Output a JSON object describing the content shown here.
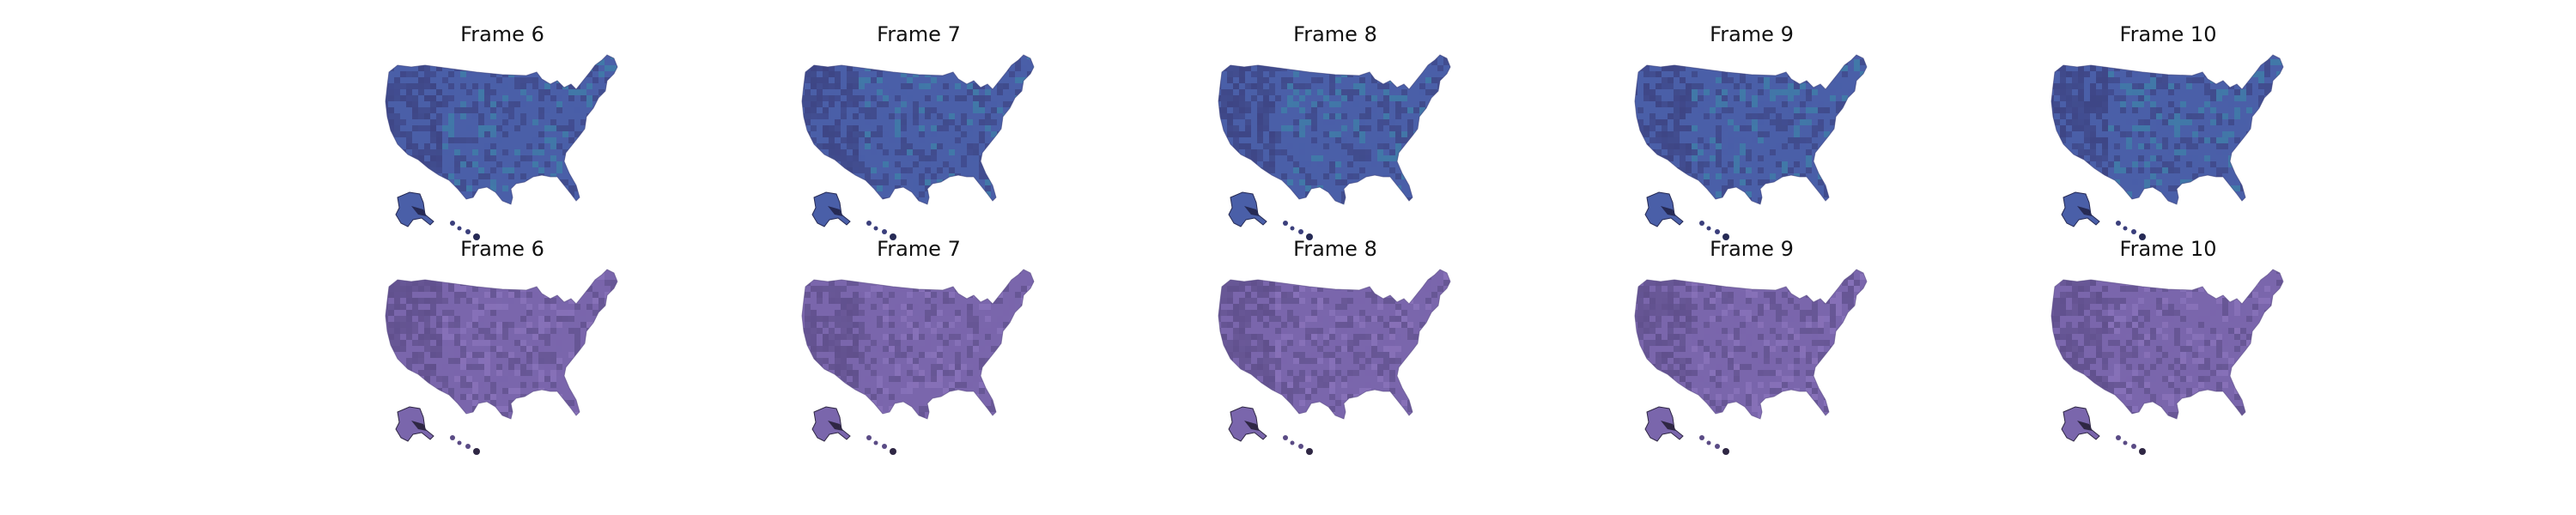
{
  "figure": {
    "rows": [
      {
        "row_id": "row-top",
        "colormap": "blue-viridis-like",
        "colors": {
          "base": "#4a5fa8",
          "dark": "#3b3f7c",
          "accent": "#3f7fa8",
          "deep": "#262a55"
        },
        "panels": [
          {
            "title": "Frame 6"
          },
          {
            "title": "Frame 7"
          },
          {
            "title": "Frame 8"
          },
          {
            "title": "Frame 9"
          },
          {
            "title": "Frame 10"
          }
        ]
      },
      {
        "row_id": "row-bottom",
        "colormap": "purple",
        "colors": {
          "base": "#7a66ac",
          "dark": "#5a4b85",
          "accent": "#8a74bb",
          "deep": "#2f2744"
        },
        "panels": [
          {
            "title": "Frame 6"
          },
          {
            "title": "Frame 7"
          },
          {
            "title": "Frame 8"
          },
          {
            "title": "Frame 9"
          },
          {
            "title": "Frame 10"
          }
        ]
      }
    ]
  }
}
